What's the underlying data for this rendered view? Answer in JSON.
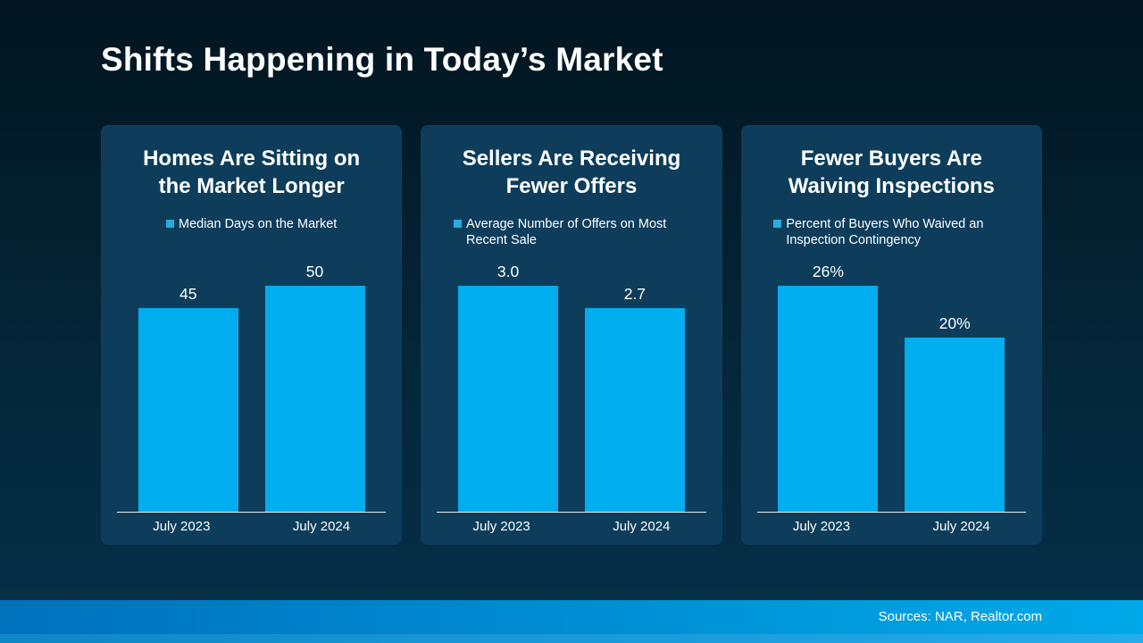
{
  "title": "Shifts Happening in Today’s Market",
  "footer": {
    "sources": "Sources: NAR, Realtor.com"
  },
  "colors": {
    "background_top": "#021520",
    "background_bottom": "#05304a",
    "panel": "#0d3d5b",
    "bar": "#00aeef",
    "legend_marker": "#29abe2",
    "band_left": "#0071bc",
    "band_right": "#00a9e9"
  },
  "chart_data": [
    {
      "type": "bar",
      "title": "Homes Are Sitting on the Market Longer",
      "legend": "Median Days on the Market",
      "categories": [
        "July 2023",
        "July 2024"
      ],
      "values": [
        45,
        50
      ],
      "value_labels": [
        "45",
        "50"
      ],
      "ylim": [
        0,
        50
      ],
      "grid": false,
      "legend_position": "top"
    },
    {
      "type": "bar",
      "title": "Sellers Are Receiving Fewer Offers",
      "legend": "Average Number of Offers on Most Recent Sale",
      "categories": [
        "July 2023",
        "July 2024"
      ],
      "values": [
        3.0,
        2.7
      ],
      "value_labels": [
        "3.0",
        "2.7"
      ],
      "ylim": [
        0,
        3
      ],
      "grid": false,
      "legend_position": "top"
    },
    {
      "type": "bar",
      "title": "Fewer Buyers Are Waiving Inspections",
      "legend": "Percent of Buyers Who Waived an Inspection Contingency",
      "categories": [
        "July 2023",
        "July 2024"
      ],
      "values": [
        26,
        20
      ],
      "value_labels": [
        "26%",
        "20%"
      ],
      "ylim": [
        0,
        26
      ],
      "grid": false,
      "legend_position": "top"
    }
  ]
}
